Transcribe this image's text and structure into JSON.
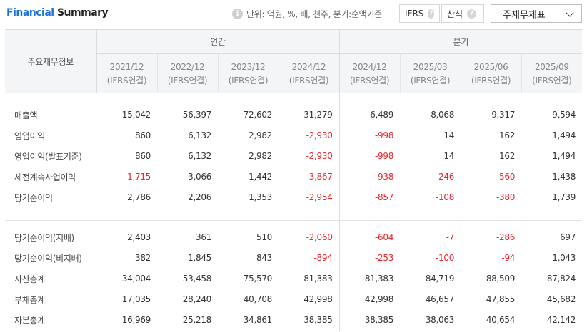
{
  "title": {
    "part1": "Financial",
    "part2": "Summary"
  },
  "unit_text": "단위: 억원, %, 배, 천주, 분기:순액기준",
  "chips": {
    "ifrs": "IFRS",
    "calc": "산식"
  },
  "select": {
    "value": "주재무제표"
  },
  "table": {
    "row_header": "주요재무정보",
    "group_annual": "연간",
    "group_quarter": "분기",
    "columns": [
      {
        "period": "2021/12",
        "basis": "(IFRS연결)"
      },
      {
        "period": "2022/12",
        "basis": "(IFRS연결)"
      },
      {
        "period": "2023/12",
        "basis": "(IFRS연결)"
      },
      {
        "period": "2024/12",
        "basis": "(IFRS연결)"
      },
      {
        "period": "2024/12",
        "basis": "(IFRS연결)"
      },
      {
        "period": "2025/03",
        "basis": "(IFRS연결)"
      },
      {
        "period": "2025/06",
        "basis": "(IFRS연결)"
      },
      {
        "period": "2025/09",
        "basis": "(IFRS연결)"
      }
    ],
    "rows_group1": [
      {
        "label": "매출액",
        "values": [
          "15,042",
          "56,397",
          "72,602",
          "31,279",
          "6,489",
          "8,068",
          "9,317",
          "9,594"
        ]
      },
      {
        "label": "영업이익",
        "values": [
          "860",
          "6,132",
          "2,982",
          "-2,930",
          "-998",
          "14",
          "162",
          "1,494"
        ]
      },
      {
        "label": "영업이익(발표기준)",
        "values": [
          "860",
          "6,132",
          "2,982",
          "-2,930",
          "-998",
          "14",
          "162",
          "1,494"
        ]
      },
      {
        "label": "세전계속사업이익",
        "values": [
          "-1,715",
          "3,066",
          "1,442",
          "-3,867",
          "-938",
          "-246",
          "-560",
          "1,438"
        ]
      },
      {
        "label": "당기순이익",
        "values": [
          "2,786",
          "2,206",
          "1,353",
          "-2,954",
          "-857",
          "-108",
          "-380",
          "1,739"
        ]
      }
    ],
    "rows_group2": [
      {
        "label": "당기순이익(지배)",
        "values": [
          "2,403",
          "361",
          "510",
          "-2,060",
          "-604",
          "-7",
          "-286",
          "697"
        ]
      },
      {
        "label": "당기순이익(비지배)",
        "values": [
          "382",
          "1,845",
          "843",
          "-894",
          "-253",
          "-100",
          "-94",
          "1,043"
        ]
      },
      {
        "label": "자산총계",
        "values": [
          "34,004",
          "53,458",
          "75,570",
          "81,383",
          "81,383",
          "84,719",
          "88,509",
          "87,824"
        ]
      },
      {
        "label": "부채총계",
        "values": [
          "17,035",
          "28,240",
          "40,708",
          "42,998",
          "42,998",
          "46,657",
          "47,855",
          "45,682"
        ]
      },
      {
        "label": "자본총계",
        "values": [
          "16,969",
          "25,218",
          "34,861",
          "38,385",
          "38,385",
          "38,063",
          "40,654",
          "42,142"
        ]
      }
    ]
  },
  "colors": {
    "accent": "#1f72d8",
    "negative": "#e6272d"
  }
}
